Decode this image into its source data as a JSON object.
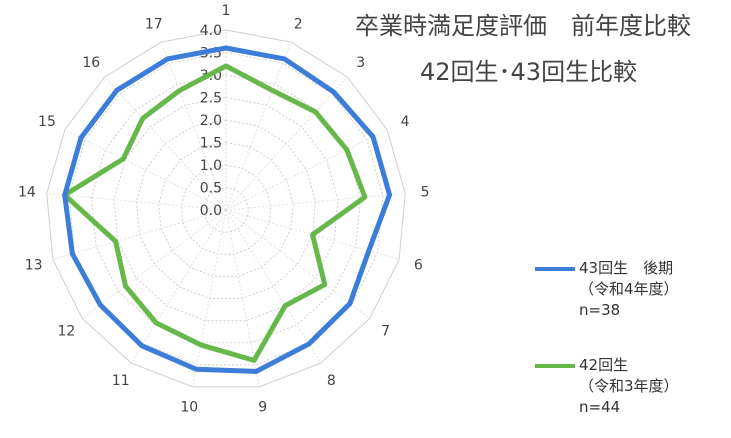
{
  "chart_data": {
    "type": "radar",
    "title": "卒業時満足度評価　前年度比較",
    "subtitle": "42回生･43回生比較",
    "categories": [
      "1",
      "2",
      "3",
      "4",
      "5",
      "6",
      "7",
      "8",
      "9",
      "10",
      "11",
      "12",
      "13",
      "14",
      "15",
      "16",
      "17"
    ],
    "r_ticks": [
      "0.0",
      "0.5",
      "1.0",
      "1.5",
      "2.0",
      "2.5",
      "3.0",
      "3.5",
      "4.0"
    ],
    "r_range": [
      0,
      4.0
    ],
    "series": [
      {
        "name": "43回生　後期",
        "name_line2": "（令和4年度）",
        "name_line3": "n=38",
        "color": "#3b7dd8",
        "values": [
          3.6,
          3.6,
          3.55,
          3.65,
          3.65,
          3.3,
          3.45,
          3.5,
          3.65,
          3.6,
          3.55,
          3.5,
          3.55,
          3.6,
          3.6,
          3.6,
          3.6
        ]
      },
      {
        "name": "42回生",
        "name_line2": "（令和3年度）",
        "name_line3": "n=44",
        "color": "#66b84a",
        "values": [
          3.2,
          2.85,
          2.95,
          3.0,
          3.1,
          2.0,
          2.75,
          2.5,
          3.4,
          3.05,
          2.95,
          2.8,
          2.55,
          3.6,
          2.55,
          2.75,
          2.85
        ]
      }
    ],
    "legend_position": "right"
  }
}
